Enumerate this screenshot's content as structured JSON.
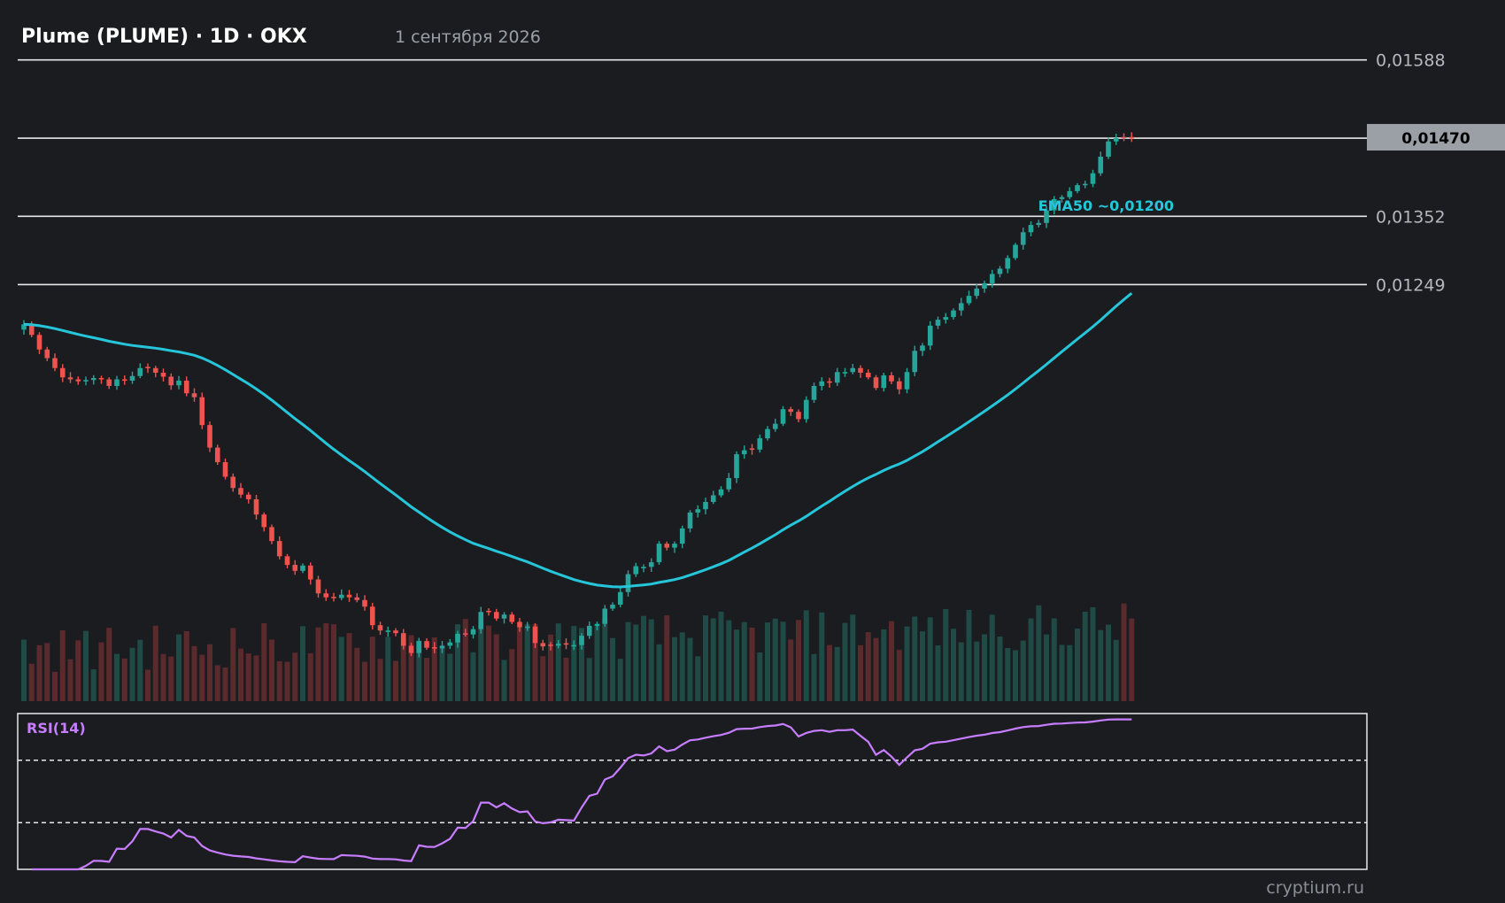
{
  "header": {
    "title": "Plume (PLUME) · 1D · OKX",
    "date": "1 сентября 2026"
  },
  "watermark": "cryptium.ru",
  "colors": {
    "background": "#1b1c20",
    "up": "#26a69a",
    "down": "#ef5350",
    "ema": "#26c6da",
    "rsi": "#c77dff",
    "level_line": "#e8e8e8",
    "price_tag_bg": "#9aa0a6"
  },
  "chart_data": {
    "type": "candlestick",
    "price_range": [
      0.0077,
      0.01625
    ],
    "levels": [
      {
        "value": 0.01588,
        "label": "0,01588"
      },
      {
        "value": 0.0147,
        "label": "0,01470",
        "current": true
      },
      {
        "value": 0.01352,
        "label": "0,01352"
      },
      {
        "value": 0.01249,
        "label": "0,01249"
      }
    ],
    "current_price_label": "0,01470",
    "ema": {
      "label": "EMA50 ~0,01200",
      "period": 50
    },
    "closes": [
      0.01189,
      0.01173,
      0.01151,
      0.01138,
      0.01123,
      0.01109,
      0.01106,
      0.01103,
      0.01105,
      0.01108,
      0.01106,
      0.01096,
      0.01106,
      0.01104,
      0.01111,
      0.01123,
      0.01123,
      0.01116,
      0.0111,
      0.01097,
      0.01104,
      0.01085,
      0.01079,
      0.01037,
      0.01003,
      0.00981,
      0.00959,
      0.00942,
      0.00932,
      0.00925,
      0.00902,
      0.00883,
      0.00862,
      0.00839,
      0.00826,
      0.00817,
      0.00825,
      0.00804,
      0.00783,
      0.00777,
      0.00776,
      0.00781,
      0.00777,
      0.00773,
      0.00763,
      0.00735,
      0.00727,
      0.00727,
      0.00723,
      0.00704,
      0.00693,
      0.00711,
      0.00701,
      0.007,
      0.00704,
      0.00709,
      0.00722,
      0.00721,
      0.00729,
      0.00755,
      0.00755,
      0.00745,
      0.00751,
      0.0074,
      0.00732,
      0.00733,
      0.00708,
      0.00703,
      0.00704,
      0.00707,
      0.00706,
      0.00705,
      0.00719,
      0.00734,
      0.00737,
      0.0076,
      0.00766,
      0.00785,
      0.00812,
      0.00824,
      0.00823,
      0.0083,
      0.00858,
      0.00852,
      0.00858,
      0.00881,
      0.00905,
      0.0091,
      0.00921,
      0.00931,
      0.0094,
      0.00957,
      0.00993,
      0.00999,
      0.01,
      0.01017,
      0.01031,
      0.01039,
      0.01061,
      0.01057,
      0.01046,
      0.01075,
      0.01096,
      0.01103,
      0.01101,
      0.01117,
      0.01117,
      0.01123,
      0.01116,
      0.01109,
      0.01093,
      0.01112,
      0.01103,
      0.01091,
      0.01117,
      0.01149,
      0.01157,
      0.01187,
      0.01196,
      0.012,
      0.0121,
      0.01221,
      0.01232,
      0.01243,
      0.01251,
      0.01265,
      0.01273,
      0.01289,
      0.01309,
      0.01328,
      0.01339,
      0.01342,
      0.01361,
      0.01378,
      0.01381,
      0.0139,
      0.01399,
      0.01401,
      0.01417,
      0.01442,
      0.01465,
      0.0147,
      0.0147,
      0.0147
    ],
    "rsi": {
      "label": "RSI(14)",
      "period": 14,
      "upper": 70,
      "lower": 30,
      "range": [
        0,
        100
      ]
    },
    "volume": {
      "shown": true
    }
  }
}
